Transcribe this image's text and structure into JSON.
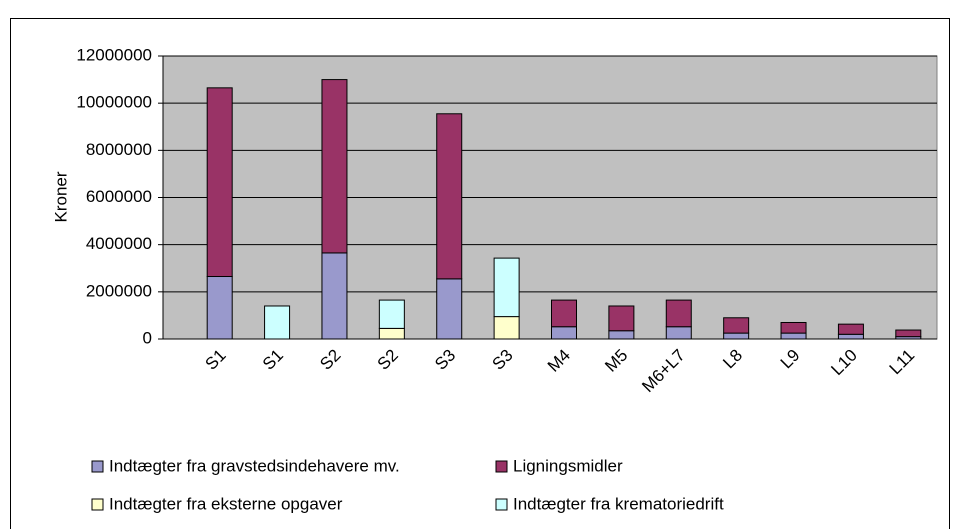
{
  "chart_data": {
    "type": "stacked_bar",
    "y_label": "Kroner",
    "categories": [
      "S1",
      "S1",
      "S2",
      "S2",
      "S3",
      "S3",
      "M4",
      "M5",
      "M6+L7",
      "L8",
      "L9",
      "L10",
      "L11"
    ],
    "series": [
      {
        "name": "Indtægter fra gravstedsindehavere mv.",
        "color": "#9999cc",
        "values": [
          2650000,
          null,
          3650000,
          null,
          2550000,
          null,
          520000,
          350000,
          520000,
          250000,
          250000,
          200000,
          100000
        ]
      },
      {
        "name": "Ligningsmidler",
        "color": "#993366",
        "values": [
          8000000,
          null,
          7350000,
          null,
          7000000,
          null,
          1130000,
          1050000,
          1130000,
          650000,
          450000,
          430000,
          280000
        ]
      },
      {
        "name": "Indtægter fra eksterne opgaver",
        "color": "#ffffcc",
        "values": [
          null,
          null,
          null,
          450000,
          null,
          950000,
          null,
          null,
          null,
          null,
          null,
          null,
          null
        ]
      },
      {
        "name": "Indtægter fra krematoriedrift",
        "color": "#ccffff",
        "values": [
          null,
          1400000,
          null,
          1200000,
          null,
          2480000,
          null,
          null,
          null,
          null,
          null,
          null,
          null
        ]
      }
    ],
    "ylim": [
      0,
      12000000
    ],
    "yticks": [
      0,
      2000000,
      4000000,
      6000000,
      8000000,
      10000000,
      12000000
    ],
    "grid": true,
    "plot_background": "#c0c0c0",
    "legend": "bottom"
  }
}
